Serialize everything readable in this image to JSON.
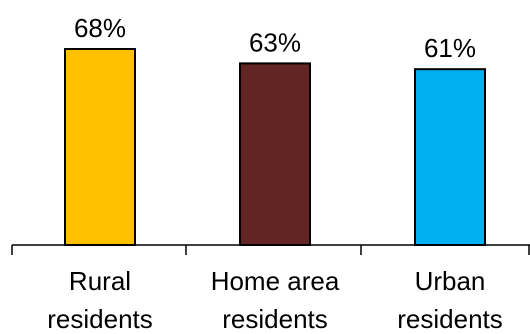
{
  "chart_data": {
    "type": "bar",
    "categories": [
      [
        "Rural",
        "residents"
      ],
      [
        "Home area",
        "residents"
      ],
      [
        "Urban",
        "residents"
      ]
    ],
    "values": [
      68,
      63,
      61
    ],
    "value_labels": [
      "68%",
      "63%",
      "61%"
    ],
    "colors": [
      "#FFC000",
      "#632523",
      "#00B0F0"
    ],
    "ylim": [
      0,
      68
    ],
    "title": "",
    "xlabel": "",
    "ylabel": "",
    "grid": false,
    "legend": "none"
  }
}
